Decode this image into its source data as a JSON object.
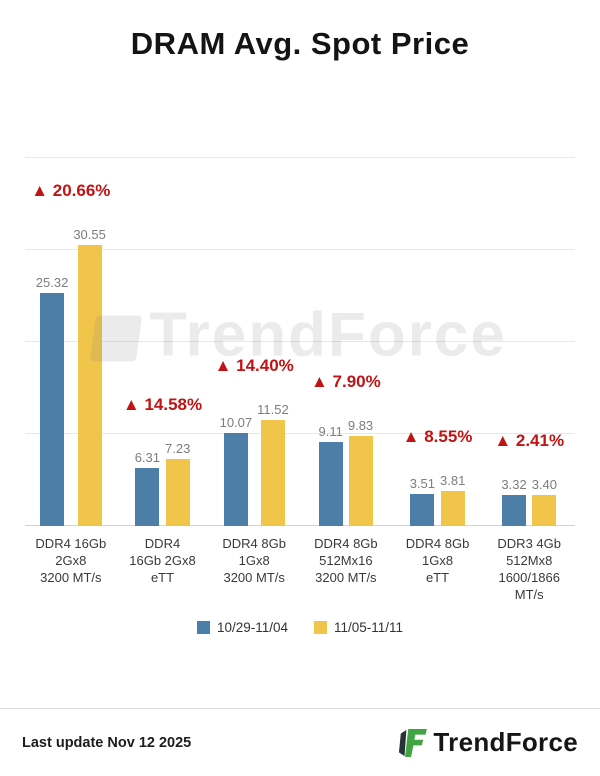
{
  "title": "DRAM Avg. Spot Price",
  "watermark": "TrendForce",
  "legend": [
    {
      "label": "10/29-11/04",
      "color": "#4d7ea8"
    },
    {
      "label": "11/05-11/11",
      "color": "#f0c54a"
    }
  ],
  "footer": {
    "last_update": "Last update Nov 12  2025",
    "brand": "TrendForce"
  },
  "chart_data": {
    "type": "bar",
    "title": "DRAM Avg. Spot Price",
    "ylabel": "",
    "xlabel": "",
    "ylim": [
      0,
      40
    ],
    "grid": true,
    "grid_step": 10,
    "legend_position": "bottom",
    "categories": [
      "DDR4 16Gb\n2Gx8\n3200 MT/s",
      "DDR4\n16Gb 2Gx8\neTT",
      "DDR4 8Gb\n1Gx8\n3200 MT/s",
      "DDR4 8Gb\n512Mx16\n3200 MT/s",
      "DDR4 8Gb\n1Gx8\neTT",
      "DDR3 4Gb\n512Mx8\n1600/1866\nMT/s"
    ],
    "series": [
      {
        "name": "10/29-11/04",
        "color": "#4d7ea8",
        "values": [
          25.32,
          6.31,
          10.07,
          9.11,
          3.51,
          3.32
        ]
      },
      {
        "name": "11/05-11/11",
        "color": "#f0c54a",
        "values": [
          30.55,
          7.23,
          11.52,
          9.83,
          3.81,
          3.4
        ]
      }
    ],
    "change_labels": [
      "▲ 20.66%",
      "▲ 14.58%",
      "▲ 14.40%",
      "▲ 7.90%",
      "▲ 8.55%",
      "▲ 2.41%"
    ]
  }
}
